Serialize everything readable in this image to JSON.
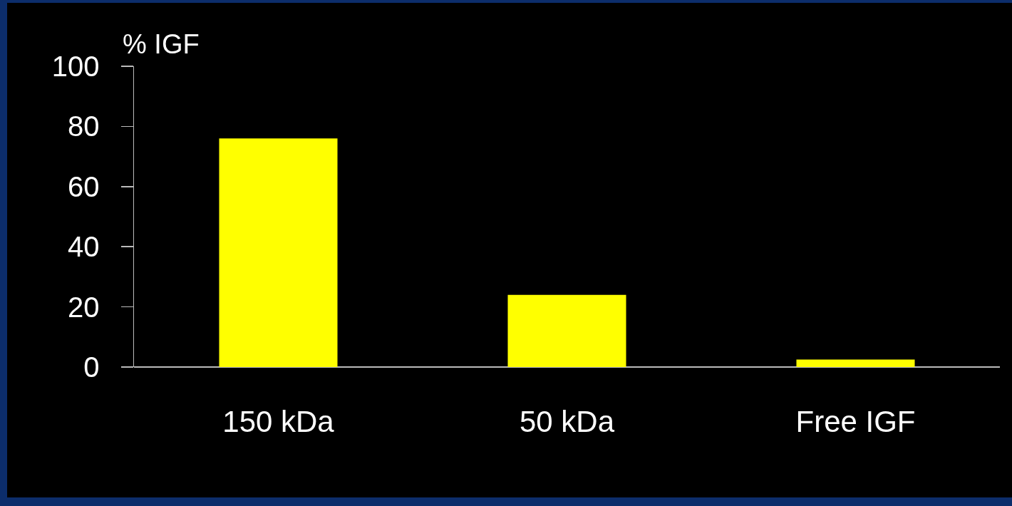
{
  "chart_data": {
    "type": "bar",
    "ylabel": "% IGF",
    "categories": [
      "150 kDa",
      "50 kDa",
      "Free IGF"
    ],
    "values": [
      76,
      24,
      2.5
    ],
    "color": "#ffff00",
    "ylim": [
      0,
      100
    ],
    "yticks": [
      0,
      20,
      40,
      60,
      80,
      100
    ],
    "grid": false,
    "legend": false
  }
}
